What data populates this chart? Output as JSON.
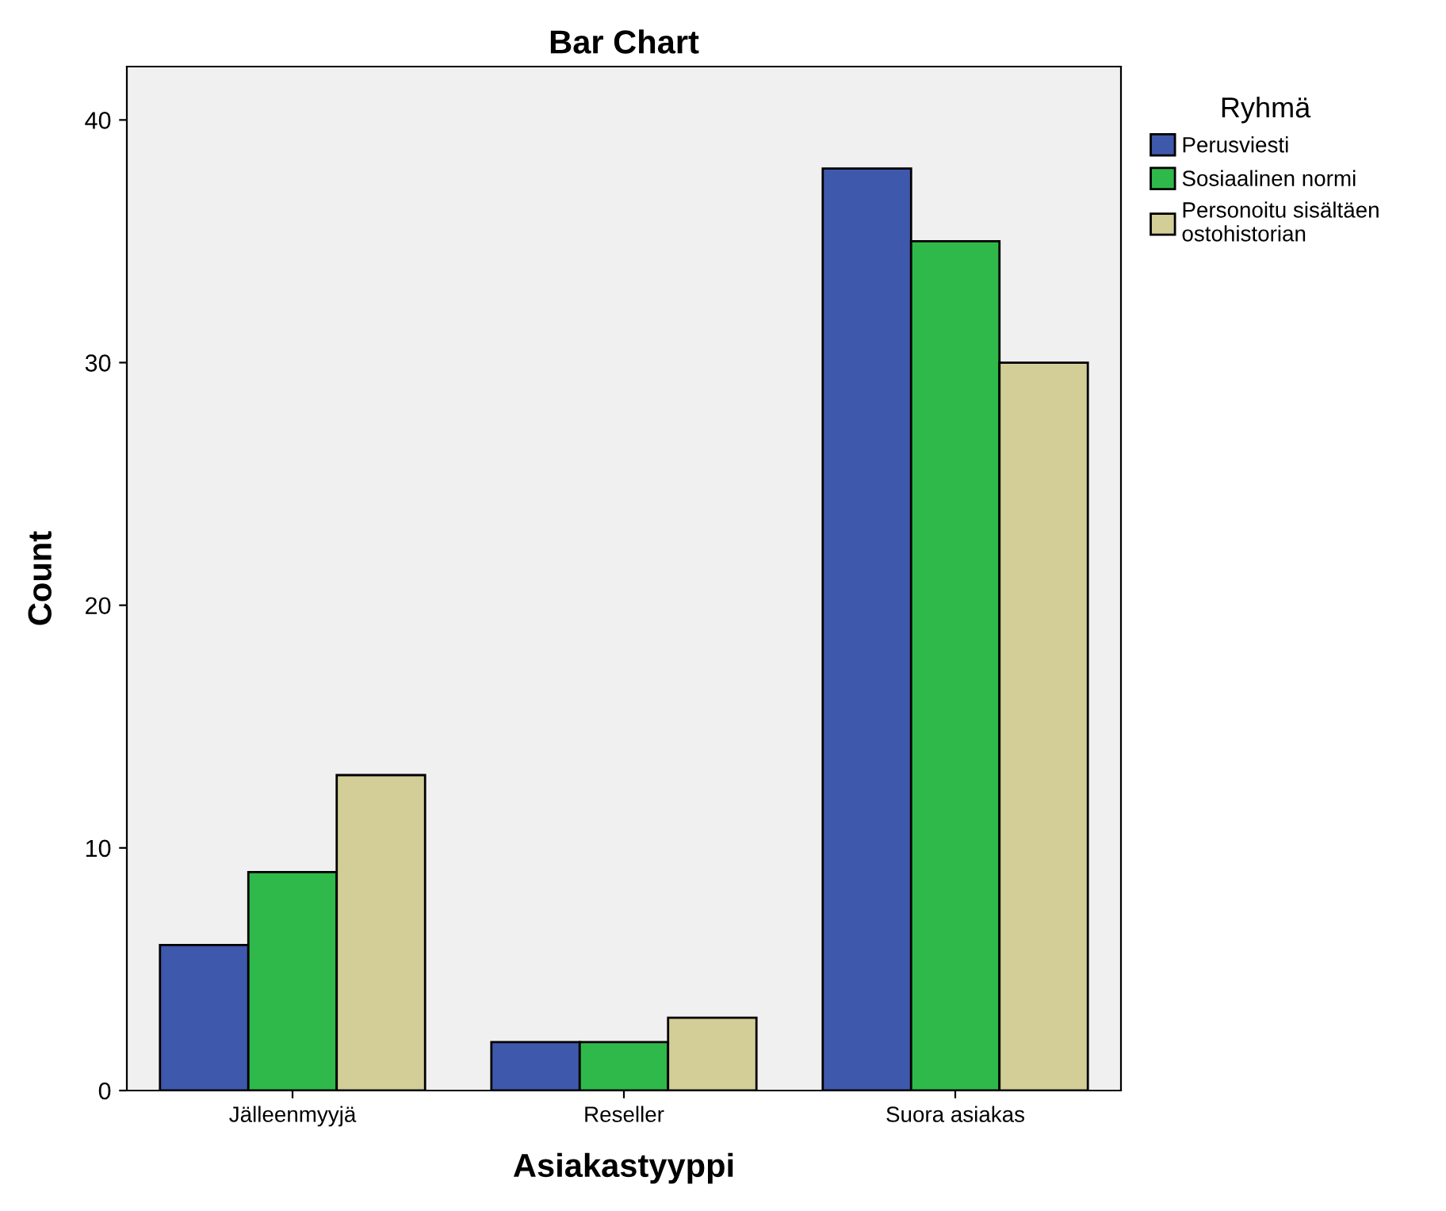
{
  "chart_data": {
    "type": "bar",
    "title": "Bar Chart",
    "xlabel": "Asiakastyyppi",
    "ylabel": "Count",
    "legend_title": "Ryhmä",
    "categories": [
      "Jälleenmyyjä",
      "Reseller",
      "Suora asiakas"
    ],
    "series": [
      {
        "name": "Perusviesti",
        "color": "#3e58ac",
        "values": [
          6,
          2,
          38
        ]
      },
      {
        "name": "Sosiaalinen normi",
        "color": "#2fb94a",
        "values": [
          9,
          2,
          35
        ]
      },
      {
        "name": "Personoitu sisältäen\nostohistorian",
        "color": "#d3ce97",
        "values": [
          13,
          3,
          30
        ]
      }
    ],
    "ylim": [
      0,
      42.2
    ],
    "yticks": [
      0,
      10,
      20,
      30,
      40
    ],
    "grid": false,
    "legend": "top right"
  }
}
